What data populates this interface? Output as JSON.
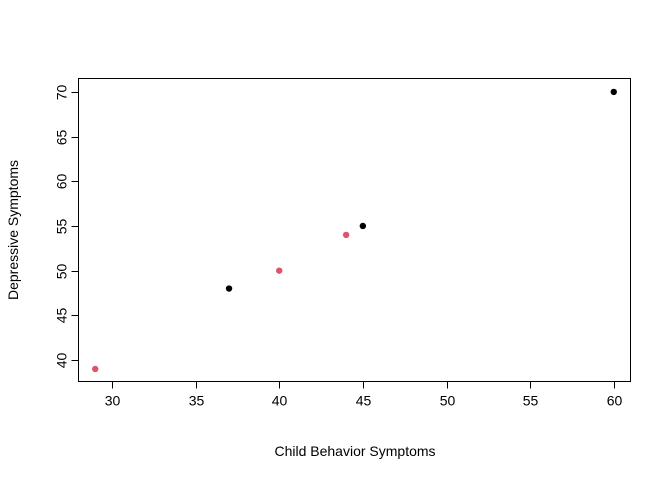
{
  "chart_data": {
    "type": "scatter",
    "title": "",
    "xlabel": "Child Behavior Symptoms",
    "ylabel": "Depressive Symptoms",
    "xlim": [
      28,
      61
    ],
    "ylim": [
      37.6,
      71.5
    ],
    "xticks": [
      30,
      35,
      40,
      45,
      50,
      55,
      60
    ],
    "yticks": [
      40,
      45,
      50,
      55,
      60,
      65,
      70
    ],
    "grid": false,
    "legend": "none",
    "series": [
      {
        "color": "#000000",
        "points": [
          {
            "x": 37,
            "y": 48
          },
          {
            "x": 45,
            "y": 55
          },
          {
            "x": 60,
            "y": 70
          }
        ]
      },
      {
        "color": "#DF536B",
        "points": [
          {
            "x": 29,
            "y": 39
          },
          {
            "x": 40,
            "y": 50
          },
          {
            "x": 44,
            "y": 54
          }
        ]
      }
    ]
  }
}
